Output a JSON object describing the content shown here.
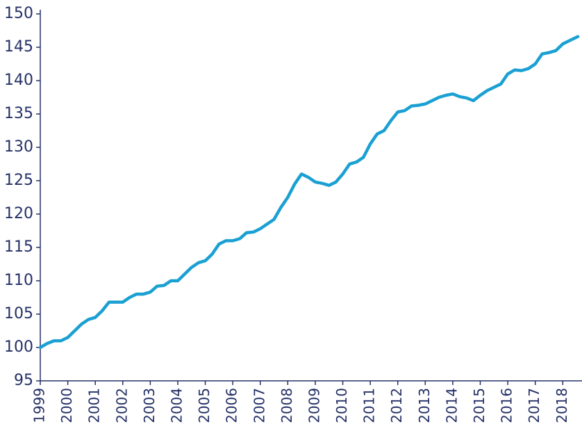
{
  "chart_data": {
    "type": "line",
    "x": [
      1999.0,
      1999.25,
      1999.5,
      1999.75,
      2000.0,
      2000.25,
      2000.5,
      2000.75,
      2001.0,
      2001.25,
      2001.5,
      2001.75,
      2002.0,
      2002.25,
      2002.5,
      2002.75,
      2003.0,
      2003.25,
      2003.5,
      2003.75,
      2004.0,
      2004.25,
      2004.5,
      2004.75,
      2005.0,
      2005.25,
      2005.5,
      2005.75,
      2006.0,
      2006.25,
      2006.5,
      2006.75,
      2007.0,
      2007.25,
      2007.5,
      2007.75,
      2008.0,
      2008.25,
      2008.5,
      2008.75,
      2009.0,
      2009.25,
      2009.5,
      2009.75,
      2010.0,
      2010.25,
      2010.5,
      2010.75,
      2011.0,
      2011.25,
      2011.5,
      2011.75,
      2012.0,
      2012.25,
      2012.5,
      2012.75,
      2013.0,
      2013.25,
      2013.5,
      2013.75,
      2014.0,
      2014.25,
      2014.5,
      2014.75,
      2015.0,
      2015.25,
      2015.5,
      2015.75,
      2016.0,
      2016.25,
      2016.5,
      2016.75,
      2017.0,
      2017.25,
      2017.5,
      2017.75,
      2018.0,
      2018.25,
      2018.55
    ],
    "series": [
      {
        "color": "#1aa0d2",
        "values": [
          100,
          100.6,
          101,
          101,
          101.5,
          102.5,
          103.5,
          104.2,
          104.5,
          105.5,
          106.8,
          106.8,
          106.8,
          107.5,
          108,
          108,
          108.3,
          109.2,
          109.3,
          110,
          110,
          111,
          112,
          112.7,
          113,
          114,
          115.5,
          116,
          116,
          116.3,
          117.2,
          117.3,
          117.8,
          118.5,
          119.2,
          121,
          122.5,
          124.5,
          126,
          125.5,
          124.8,
          124.6,
          124.3,
          124.8,
          126,
          127.5,
          127.8,
          128.5,
          130.5,
          132,
          132.5,
          134,
          135.3,
          135.5,
          136.2,
          136.3,
          136.5,
          137,
          137.5,
          137.8,
          138,
          137.6,
          137.4,
          137,
          137.8,
          138.5,
          139,
          139.5,
          141,
          141.6,
          141.5,
          141.8,
          142.5,
          144,
          144.2,
          144.5,
          145.5,
          146,
          146.6
        ]
      }
    ],
    "xlim": [
      1999,
      2018.7
    ],
    "xticks": [
      1999,
      2000,
      2001,
      2002,
      2003,
      2004,
      2005,
      2006,
      2007,
      2008,
      2009,
      2010,
      2011,
      2012,
      2013,
      2014,
      2015,
      2016,
      2017,
      2018
    ],
    "ylim": [
      95,
      150
    ],
    "yticks": [
      95,
      100,
      105,
      110,
      115,
      120,
      125,
      130,
      135,
      140,
      145,
      150
    ]
  }
}
